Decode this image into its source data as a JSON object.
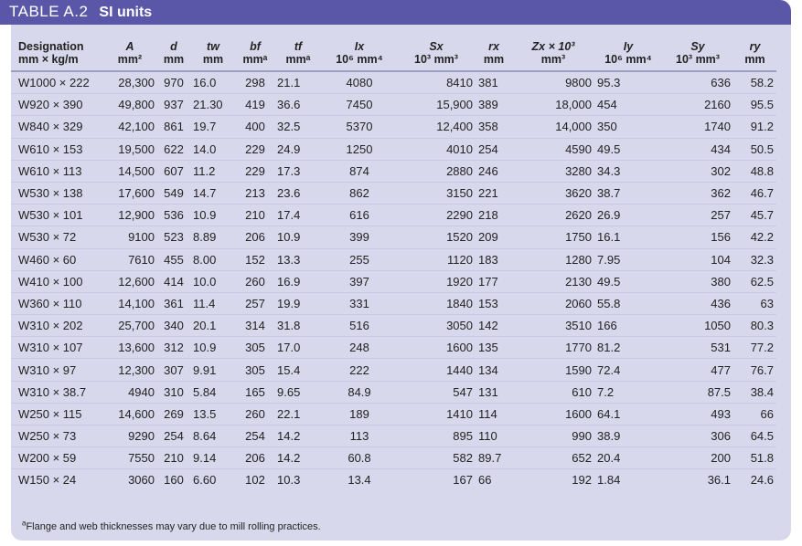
{
  "banner": {
    "label": "TABLE A.2",
    "subtitle": "SI units"
  },
  "headers": [
    {
      "sym": "Designation",
      "unit": "mm × kg/m"
    },
    {
      "sym": "A",
      "unit": "mm²"
    },
    {
      "sym": "d",
      "unit": "mm"
    },
    {
      "sym": "tw",
      "unit": "mm"
    },
    {
      "sym": "bf",
      "unit": "mmᵃ"
    },
    {
      "sym": "tf",
      "unit": "mmᵃ"
    },
    {
      "sym": "Ix",
      "unit": "10⁶ mm⁴"
    },
    {
      "sym": "Sx",
      "unit": "10³ mm³"
    },
    {
      "sym": "rx",
      "unit": "mm"
    },
    {
      "sym": "Zx × 10³",
      "unit": "mm³"
    },
    {
      "sym": "Iy",
      "unit": "10⁶ mm⁴"
    },
    {
      "sym": "Sy",
      "unit": "10³ mm³"
    },
    {
      "sym": "ry",
      "unit": "mm"
    }
  ],
  "rows": [
    [
      "W1000 × 222",
      "28,300",
      "970",
      "16.0",
      "298",
      "21.1",
      "4080",
      "8410",
      "381",
      "9800",
      "95.3",
      "636",
      "58.2"
    ],
    [
      "W920 × 390",
      "49,800",
      "937",
      "21.30",
      "419",
      "36.6",
      "7450",
      "15,900",
      "389",
      "18,000",
      "454",
      "2160",
      "95.5"
    ],
    [
      "W840 × 329",
      "42,100",
      "861",
      "19.7",
      "400",
      "32.5",
      "5370",
      "12,400",
      "358",
      "14,000",
      "350",
      "1740",
      "91.2"
    ],
    [
      "W610 × 153",
      "19,500",
      "622",
      "14.0",
      "229",
      "24.9",
      "1250",
      "4010",
      "254",
      "4590",
      "49.5",
      "434",
      "50.5"
    ],
    [
      "W610 × 113",
      "14,500",
      "607",
      "11.2",
      "229",
      "17.3",
      "874",
      "2880",
      "246",
      "3280",
      "34.3",
      "302",
      "48.8"
    ],
    [
      "W530 × 138",
      "17,600",
      "549",
      "14.7",
      "213",
      "23.6",
      "862",
      "3150",
      "221",
      "3620",
      "38.7",
      "362",
      "46.7"
    ],
    [
      "W530 × 101",
      "12,900",
      "536",
      "10.9",
      "210",
      "17.4",
      "616",
      "2290",
      "218",
      "2620",
      "26.9",
      "257",
      "45.7"
    ],
    [
      "W530 × 72",
      "9100",
      "523",
      "8.89",
      "206",
      "10.9",
      "399",
      "1520",
      "209",
      "1750",
      "16.1",
      "156",
      "42.2"
    ],
    [
      "W460 × 60",
      "7610",
      "455",
      "8.00",
      "152",
      "13.3",
      "255",
      "1120",
      "183",
      "1280",
      "7.95",
      "104",
      "32.3"
    ],
    [
      "W410 × 100",
      "12,600",
      "414",
      "10.0",
      "260",
      "16.9",
      "397",
      "1920",
      "177",
      "2130",
      "49.5",
      "380",
      "62.5"
    ],
    [
      "W360 × 110",
      "14,100",
      "361",
      "11.4",
      "257",
      "19.9",
      "331",
      "1840",
      "153",
      "2060",
      "55.8",
      "436",
      "63"
    ],
    [
      "W310 × 202",
      "25,700",
      "340",
      "20.1",
      "314",
      "31.8",
      "516",
      "3050",
      "142",
      "3510",
      "166",
      "1050",
      "80.3"
    ],
    [
      "W310 × 107",
      "13,600",
      "312",
      "10.9",
      "305",
      "17.0",
      "248",
      "1600",
      "135",
      "1770",
      "81.2",
      "531",
      "77.2"
    ],
    [
      "W310 × 97",
      "12,300",
      "307",
      "9.91",
      "305",
      "15.4",
      "222",
      "1440",
      "134",
      "1590",
      "72.4",
      "477",
      "76.7"
    ],
    [
      "W310 × 38.7",
      "4940",
      "310",
      "5.84",
      "165",
      "9.65",
      "84.9",
      "547",
      "131",
      "610",
      "7.2",
      "87.5",
      "38.4"
    ],
    [
      "W250 × 115",
      "14,600",
      "269",
      "13.5",
      "260",
      "22.1",
      "189",
      "1410",
      "114",
      "1600",
      "64.1",
      "493",
      "66"
    ],
    [
      "W250 × 73",
      "9290",
      "254",
      "8.64",
      "254",
      "14.2",
      "113",
      "895",
      "110",
      "990",
      "38.9",
      "306",
      "64.5"
    ],
    [
      "W200 × 59",
      "7550",
      "210",
      "9.14",
      "206",
      "14.2",
      "60.8",
      "582",
      "89.7",
      "652",
      "20.4",
      "200",
      "51.8"
    ],
    [
      "W150 × 24",
      "3060",
      "160",
      "6.60",
      "102",
      "10.3",
      "13.4",
      "167",
      "66",
      "192",
      "1.84",
      "36.1",
      "24.6"
    ]
  ],
  "footnote": {
    "mark": "a",
    "text": "Flange and web thicknesses may vary due to mill rolling practices."
  }
}
